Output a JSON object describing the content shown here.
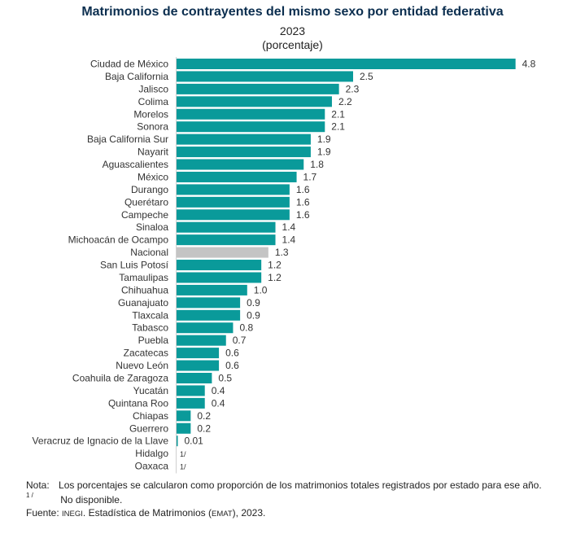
{
  "title": "Matrimonios de contrayentes del mismo sexo por entidad federativa",
  "year": "2023",
  "unit": "(porcentaje)",
  "colors": {
    "bar": "#0A9A9A",
    "national": "#C4C4C4",
    "title": "#0B2E4F"
  },
  "chart_data": {
    "type": "bar",
    "orientation": "horizontal",
    "title": "Matrimonios de contrayentes del mismo sexo por entidad federativa",
    "subtitle": "2023 (porcentaje)",
    "categories": [
      "Ciudad de México",
      "Baja California",
      "Jalisco",
      "Colima",
      "Morelos",
      "Sonora",
      "Baja California Sur",
      "Nayarit",
      "Aguascalientes",
      "México",
      "Durango",
      "Querétaro",
      "Campeche",
      "Sinaloa",
      "Michoacán de Ocampo",
      "Nacional",
      "San Luis Potosí",
      "Tamaulipas",
      "Chihuahua",
      "Guanajuato",
      "Tlaxcala",
      "Tabasco",
      "Puebla",
      "Zacatecas",
      "Nuevo León",
      "Coahuila de Zaragoza",
      "Yucatán",
      "Quintana Roo",
      "Chiapas",
      "Guerrero",
      "Veracruz de Ignacio de la Llave",
      "Hidalgo",
      "Oaxaca"
    ],
    "values": [
      4.8,
      2.5,
      2.3,
      2.2,
      2.1,
      2.1,
      1.9,
      1.9,
      1.8,
      1.7,
      1.6,
      1.6,
      1.6,
      1.4,
      1.4,
      1.3,
      1.2,
      1.2,
      1.0,
      0.9,
      0.9,
      0.8,
      0.7,
      0.6,
      0.6,
      0.5,
      0.4,
      0.4,
      0.2,
      0.2,
      0.01,
      null,
      null
    ],
    "labels": [
      "4.8",
      "2.5",
      "2.3",
      "2.2",
      "2.1",
      "2.1",
      "1.9",
      "1.9",
      "1.8",
      "1.7",
      "1.6",
      "1.6",
      "1.6",
      "1.4",
      "1.4",
      "1.3",
      "1.2",
      "1.2",
      "1.0",
      "0.9",
      "0.9",
      "0.8",
      "0.7",
      "0.6",
      "0.6",
      "0.5",
      "0.4",
      "0.4",
      "0.2",
      "0.2",
      "0.01",
      "1/",
      "1/"
    ],
    "highlight": "Nacional",
    "xlim": [
      0,
      4.8
    ],
    "grid": false
  },
  "notes": {
    "nota_label": "Nota:",
    "nota_text": "Los porcentajes se calcularon como proporción de los matrimonios totales registrados por estado para ese año.",
    "footnote_mark": "1 /",
    "footnote_text": "No disponible.",
    "fuente_label": "Fuente:",
    "fuente_org": "INEGI",
    "fuente_text_a": ". Estadística de Matrimonios (",
    "fuente_abbr": "EMAT",
    "fuente_text_b": "), 2023."
  }
}
